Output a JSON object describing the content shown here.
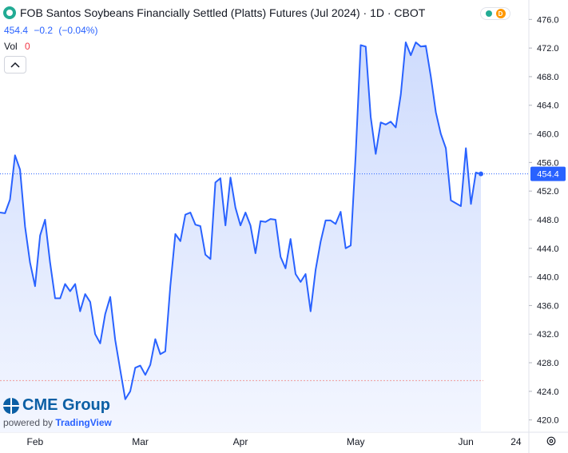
{
  "header": {
    "title": "FOB Santos Soybeans Financially Settled (Platts) Futures (Jul 2024) · 1D · CBOT",
    "last": "454.4",
    "change": "−0.2",
    "change_pct": "(−0.04%)",
    "vol_label": "Vol",
    "vol_value": "0",
    "status_badge": "D"
  },
  "brand": {
    "name": "CME Group",
    "powered_prefix": "powered by",
    "powered_brand": "TradingView"
  },
  "colors": {
    "line": "#2962ff",
    "area_top": "#cfdcfd",
    "area_bottom": "#f3f6ff",
    "price_label": "#2962ff",
    "accent_red": "#f23645"
  },
  "chart_data": {
    "type": "area",
    "y_ticks": [
      476.0,
      472.0,
      468.0,
      464.0,
      460.0,
      456.0,
      452.0,
      448.0,
      444.0,
      440.0,
      436.0,
      432.0,
      428.0,
      424.0,
      420.0
    ],
    "ylim": [
      419.4,
      477.6
    ],
    "x_tick_labels": [
      "Feb",
      "Mar",
      "Apr",
      "May",
      "Jun",
      "24"
    ],
    "last_price_label": "454.4",
    "last_price": 454.4,
    "reference_line": 425.5,
    "grid": false,
    "series": [
      {
        "values": [
          449.0,
          448.9,
          450.8,
          457.0,
          455.0,
          447.0,
          442.0,
          438.7,
          445.8,
          448.0,
          442.0,
          437.0,
          437.0,
          439.0,
          438.0,
          439.0,
          435.2,
          437.6,
          436.5,
          432.0,
          430.7,
          434.8,
          437.2,
          431.2,
          427.0,
          422.9,
          424.0,
          427.3,
          427.6,
          426.3,
          427.7,
          431.3,
          429.2,
          429.6,
          438.7,
          446.0,
          445.0,
          448.7,
          449.0,
          447.3,
          447.1,
          443.1,
          442.5,
          453.2,
          453.8,
          447.2,
          453.9,
          449.7,
          447.2,
          449.0,
          447.2,
          443.3,
          447.8,
          447.7,
          448.1,
          448.0,
          442.8,
          441.2,
          445.3,
          440.4,
          439.3,
          440.4,
          435.2,
          441.0,
          444.9,
          447.9,
          447.9,
          447.4,
          449.1,
          444.0,
          444.4,
          457.0,
          472.4,
          472.2,
          462.4,
          457.2,
          461.6,
          461.3,
          461.7,
          460.9,
          465.5,
          472.8,
          471.0,
          472.8,
          472.2,
          472.3,
          468.0,
          463.0,
          460.0,
          458.0,
          450.7,
          450.3,
          449.9,
          458.0,
          450.2,
          454.6,
          454.4
        ]
      }
    ]
  }
}
